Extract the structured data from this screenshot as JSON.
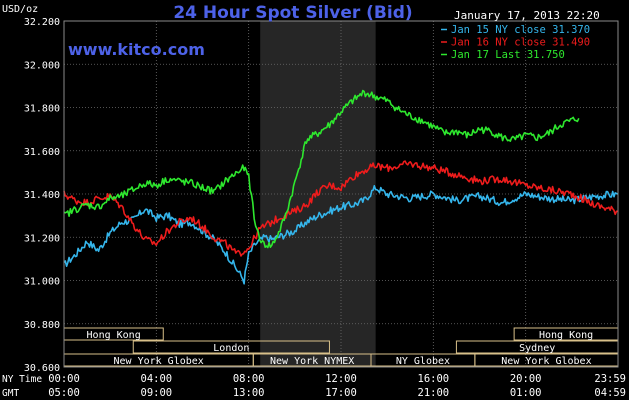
{
  "header": {
    "units": "USD/oz",
    "title": "24 Hour Spot Silver (Bid)",
    "timestamp": "January 17, 2013 22:20",
    "watermark": "www.kitco.com"
  },
  "colors": {
    "background": "#000000",
    "plot_bg": "#000000",
    "grid": "#6e6e6e",
    "highlight_band": "#262626",
    "title": "#4d62e8",
    "text": "#ffffff",
    "jan15": "#35b6ec",
    "jan16": "#ee1c1c",
    "jan17": "#2ee82e",
    "session_box": "#d8c08a"
  },
  "chart_data": {
    "type": "line",
    "title": "24 Hour Spot Silver (Bid)",
    "ylabel": "USD/oz",
    "ylim": [
      30.6,
      32.2
    ],
    "yticks": [
      "32.200",
      "32.000",
      "31.800",
      "31.600",
      "31.400",
      "31.200",
      "31.000",
      "30.800",
      "30.600"
    ],
    "grid": true,
    "legend_position": "top-right",
    "x_axis_rows": [
      {
        "label": "NY Time",
        "ticks": [
          "00:00",
          "04:00",
          "08:00",
          "12:00",
          "16:00",
          "20:00",
          "23:59"
        ]
      },
      {
        "label": "GMT",
        "ticks": [
          "05:00",
          "09:00",
          "13:00",
          "17:00",
          "21:00",
          "01:00",
          "04:59"
        ]
      }
    ],
    "xlim_hours": [
      0,
      24
    ],
    "highlight_band_hours": [
      8.5,
      13.5
    ],
    "sessions": [
      {
        "name": "Hong Kong",
        "start": 0,
        "end": 4.3,
        "row": 0
      },
      {
        "name": "Hong Kong",
        "start": 19.5,
        "end": 24,
        "row": 0
      },
      {
        "name": "London",
        "start": 3,
        "end": 11.5,
        "row": 1
      },
      {
        "name": "Sydney",
        "start": 17,
        "end": 24,
        "row": 1
      },
      {
        "name": "New York Globex",
        "start": 0,
        "end": 8.2,
        "row": 2
      },
      {
        "name": "New York NYMEX",
        "start": 8.2,
        "end": 13.3,
        "row": 2
      },
      {
        "name": "NY Globex",
        "start": 13.3,
        "end": 17.8,
        "row": 2
      },
      {
        "name": "New York Globex",
        "start": 17.8,
        "end": 24,
        "row": 2
      }
    ],
    "series": [
      {
        "name": "Jan 15 NY close 31.370",
        "legend_label": "Jan 15 NY close 31.370",
        "color_key": "jan15",
        "x": [
          0,
          0.5,
          1,
          1.5,
          2,
          2.5,
          3,
          3.5,
          4,
          4.5,
          5,
          5.5,
          6,
          6.5,
          7,
          7.5,
          7.8,
          8,
          8.3,
          8.7,
          9,
          9.5,
          10,
          10.5,
          11,
          11.5,
          12,
          12.5,
          13,
          13.5,
          14,
          15,
          16,
          17,
          18,
          19,
          20,
          21,
          22,
          23,
          23.99
        ],
        "values": [
          31.07,
          31.12,
          31.18,
          31.14,
          31.22,
          31.27,
          31.28,
          31.33,
          31.29,
          31.3,
          31.26,
          31.27,
          31.23,
          31.19,
          31.13,
          31.05,
          31.0,
          31.12,
          31.17,
          31.2,
          31.19,
          31.21,
          31.23,
          31.27,
          31.3,
          31.32,
          31.34,
          31.35,
          31.37,
          31.43,
          31.4,
          31.38,
          31.4,
          31.37,
          31.39,
          31.36,
          31.4,
          31.38,
          31.37,
          31.39,
          31.4
        ]
      },
      {
        "name": "Jan 16 NY close 31.490",
        "legend_label": "Jan 16 NY close 31.490",
        "color_key": "jan16",
        "x": [
          0,
          0.5,
          1,
          1.5,
          2,
          2.5,
          3,
          3.5,
          4,
          4.5,
          5,
          5.5,
          6,
          6.5,
          7,
          7.5,
          8,
          8.5,
          9,
          9.5,
          10,
          10.5,
          11,
          11.5,
          12,
          12.5,
          13,
          13.5,
          14,
          15,
          16,
          17,
          18,
          19,
          20,
          21,
          22,
          23,
          23.99
        ],
        "values": [
          31.4,
          31.37,
          31.36,
          31.38,
          31.39,
          31.34,
          31.26,
          31.19,
          31.17,
          31.23,
          31.27,
          31.29,
          31.25,
          31.2,
          31.17,
          31.12,
          31.15,
          31.24,
          31.27,
          31.3,
          31.32,
          31.35,
          31.41,
          31.44,
          31.43,
          31.48,
          31.51,
          31.53,
          31.52,
          31.54,
          31.52,
          31.49,
          31.46,
          31.47,
          31.44,
          31.42,
          31.4,
          31.35,
          31.32
        ]
      },
      {
        "name": "Jan 17 Last 31.750",
        "legend_label": "Jan 17 Last 31.750",
        "color_key": "jan17",
        "x": [
          0,
          0.5,
          1,
          1.5,
          2,
          2.5,
          3,
          3.5,
          4,
          4.5,
          5,
          5.5,
          6,
          6.5,
          7,
          7.5,
          7.8,
          8,
          8.3,
          8.6,
          9,
          9.3,
          9.6,
          10,
          10.5,
          11,
          11.5,
          12,
          12.5,
          13,
          13.5,
          14,
          14.5,
          15,
          15.5,
          16,
          16.5,
          17,
          17.5,
          18,
          18.5,
          19,
          19.5,
          20,
          20.5,
          21,
          21.5,
          22,
          22.3
        ],
        "values": [
          31.3,
          31.33,
          31.35,
          31.34,
          31.38,
          31.39,
          31.42,
          31.45,
          31.44,
          31.47,
          31.46,
          31.45,
          31.43,
          31.41,
          31.46,
          31.5,
          31.52,
          31.48,
          31.25,
          31.17,
          31.16,
          31.22,
          31.3,
          31.45,
          31.65,
          31.68,
          31.72,
          31.78,
          31.83,
          31.87,
          31.85,
          31.83,
          31.79,
          31.76,
          31.74,
          31.71,
          31.68,
          31.69,
          31.67,
          31.7,
          31.69,
          31.66,
          31.65,
          31.67,
          31.66,
          31.68,
          31.72,
          31.74,
          31.75
        ]
      }
    ]
  }
}
